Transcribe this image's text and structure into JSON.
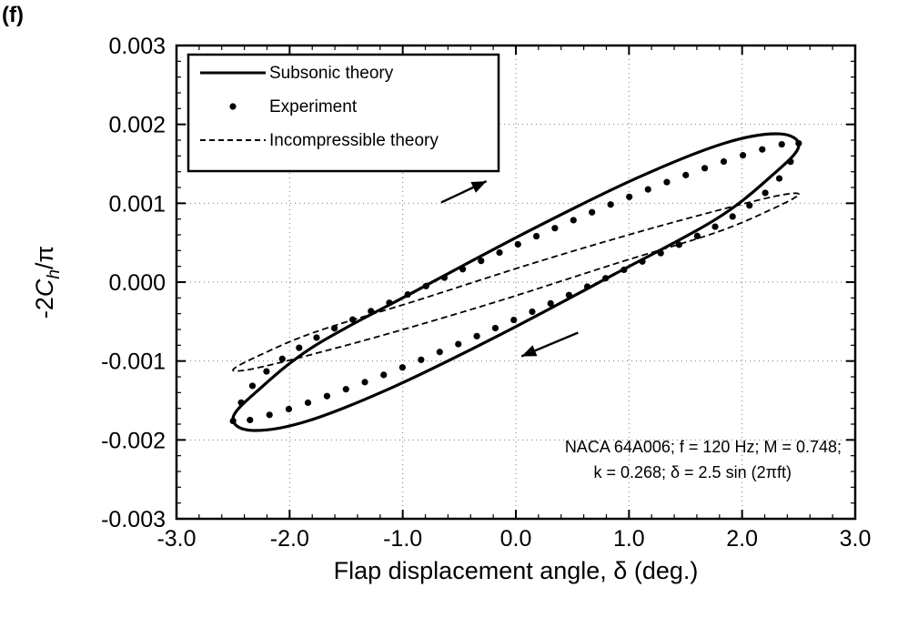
{
  "panel_label": "(f)",
  "chart_data": {
    "type": "line",
    "xlabel": "Flap displacement angle, δ (deg.)",
    "ylabel": "-2C_h/π",
    "xlim": [
      -3.0,
      3.0
    ],
    "ylim": [
      -0.003,
      0.003
    ],
    "xticks": [
      "-3.0",
      "-2.0",
      "-1.0",
      "0.0",
      "1.0",
      "2.0",
      "3.0"
    ],
    "yticks": [
      "-0.003",
      "-0.002",
      "-0.001",
      "0.000",
      "0.001",
      "0.002",
      "0.003"
    ],
    "grid": true,
    "legend_position": "top-left",
    "annotation_lines": [
      "NACA 64A006;  f = 120 Hz;  M = 0.748;",
      "k = 0.268;  δ = 2.5 sin (2πft)"
    ],
    "direction_arrows": "clockwise",
    "series": [
      {
        "name": "Subsonic theory",
        "style": "solid",
        "x": [
          2.5,
          2.33,
          1.84,
          1.07,
          0.13,
          -0.87,
          -1.77,
          -2.27,
          -2.5,
          -2.33,
          -1.84,
          -1.07,
          -0.13,
          0.87,
          1.77,
          2.27,
          2.5
        ],
        "y": [
          0.00172,
          0.00188,
          0.00176,
          0.00132,
          0.00066,
          -0.0001,
          -0.0008,
          -0.00136,
          -0.00172,
          -0.00188,
          -0.00176,
          -0.00132,
          -0.00066,
          0.0001,
          0.0008,
          0.00136,
          0.00172
        ]
      },
      {
        "name": "Experiment",
        "style": "markers",
        "x": [
          2.5,
          2.33,
          1.84,
          1.07,
          0.13,
          -0.87,
          -1.77,
          -2.27,
          -2.5,
          -2.33,
          -1.84,
          -1.07,
          -0.13,
          0.87,
          1.77,
          2.27,
          2.5
        ],
        "y": [
          0.00176,
          0.00174,
          0.00153,
          0.00112,
          0.00055,
          -0.0001,
          -0.00071,
          -0.00122,
          -0.00176,
          -0.00174,
          -0.00153,
          -0.00112,
          -0.00055,
          0.0001,
          0.00071,
          0.00122,
          0.00176
        ]
      },
      {
        "name": "Incompressible theory",
        "style": "dashed",
        "x": [
          2.5,
          2.33,
          1.84,
          1.07,
          0.13,
          -0.87,
          -1.77,
          -2.27,
          -2.5,
          -2.33,
          -1.84,
          -1.07,
          -0.13,
          0.87,
          1.77,
          2.27,
          2.5
        ],
        "y": [
          0.00111,
          0.0011,
          0.00093,
          0.00063,
          0.00023,
          -0.00023,
          -0.00063,
          -0.00093,
          -0.00111,
          -0.0011,
          -0.00093,
          -0.00063,
          -0.00023,
          0.00023,
          0.00063,
          0.00093,
          0.00111
        ]
      }
    ]
  }
}
